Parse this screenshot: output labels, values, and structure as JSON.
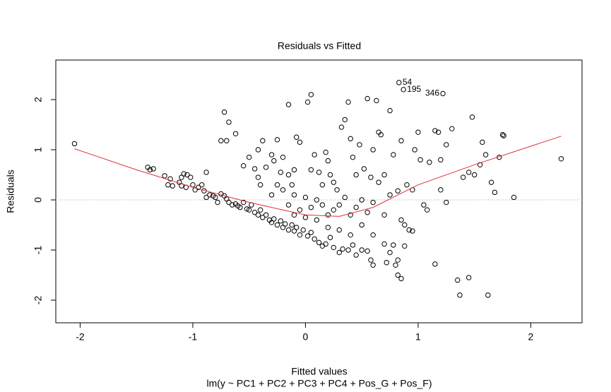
{
  "chart_data": {
    "type": "scatter",
    "title": "Residuals vs Fitted",
    "x_label": "Fitted values",
    "subtitle": "lm(y ~ PC1 + PC2 + PC3 + PC4 + Pos_G + Pos_F)",
    "y_label": "Residuals",
    "xlim": [
      -2.216,
      2.455
    ],
    "ylim": [
      -2.451,
      2.789
    ],
    "xticks": [
      -2,
      -1,
      0,
      1,
      2
    ],
    "yticks": [
      -2,
      -1,
      0,
      1,
      2
    ],
    "reference_line": 0,
    "point_color": "#000000",
    "points": {
      "x": [
        -2.05,
        -1.4,
        -1.38,
        -1.35,
        -1.25,
        -1.2,
        -1.22,
        -1.18,
        -1.12,
        -1.1,
        -1.08,
        -1.05,
        -1.02,
        -1.1,
        -1.06,
        -1.0,
        -0.98,
        -0.95,
        -0.92,
        -0.9,
        -0.88,
        -0.88,
        -0.85,
        -0.82,
        -0.8,
        -0.78,
        -0.75,
        -0.72,
        -0.7,
        -0.68,
        -0.65,
        -0.62,
        -0.6,
        -0.58,
        -0.55,
        -0.52,
        -0.5,
        -0.48,
        -0.45,
        -0.42,
        -0.4,
        -0.38,
        -0.35,
        -0.32,
        -0.3,
        -0.28,
        -0.25,
        -0.22,
        -0.2,
        -0.18,
        -0.15,
        -0.12,
        -0.1,
        -0.08,
        -0.05,
        -0.02,
        0.02,
        0.05,
        0.08,
        0.12,
        0.15,
        0.18,
        0.22,
        0.25,
        0.3,
        0.33,
        0.38,
        0.42,
        0.45,
        0.5,
        0.55,
        0.58,
        0.6,
        0.7,
        0.72,
        0.75,
        0.8,
        0.82,
        0.85,
        0.82,
        0.78,
        0.88,
        0.92,
        0.95,
        1.15,
        1.35,
        1.37,
        1.45,
        1.62,
        -0.72,
        -0.68,
        -0.75,
        -0.7,
        -0.62,
        -0.55,
        -0.5,
        -0.45,
        -0.42,
        -0.4,
        -0.42,
        -0.38,
        -0.35,
        -0.3,
        -0.28,
        -0.25,
        -0.22,
        -0.2,
        -0.15,
        -0.1,
        -0.08,
        -0.05,
        -0.15,
        -0.12,
        0.02,
        0.05,
        0.05,
        0.08,
        0.12,
        0.15,
        0.18,
        0.2,
        0.22,
        0.25,
        0.28,
        0.32,
        0.35,
        0.38,
        0.4,
        0.42,
        0.45,
        0.48,
        0.52,
        0.55,
        0.58,
        0.6,
        0.63,
        0.65,
        0.67,
        0.7,
        0.75,
        0.78,
        0.82,
        0.85,
        0.9,
        0.95,
        0.97,
        1.0,
        1.02,
        1.05,
        1.08,
        1.1,
        1.15,
        1.18,
        1.2,
        1.25,
        1.3,
        1.4,
        1.45,
        1.48,
        1.5,
        1.55,
        1.57,
        1.6,
        1.65,
        1.68,
        1.75,
        1.76,
        1.72,
        1.85,
        2.27,
        1.2,
        1.25,
        -0.3,
        -0.25,
        -0.2,
        -0.15,
        -0.1,
        -0.05,
        0.0,
        0.05,
        0.1,
        0.15,
        0.2,
        0.25,
        0.3,
        0.35,
        0.4,
        0.45,
        0.5,
        0.55,
        0.6,
        0.65,
        0.7,
        0.75,
        0.85,
        0.88,
        0.1,
        0.0,
        -0.1,
        0.2,
        0.3,
        0.4,
        0.5,
        0.6,
        0.83,
        0.87,
        1.22
      ],
      "y": [
        1.12,
        0.65,
        0.6,
        0.62,
        0.48,
        0.42,
        0.3,
        0.28,
        0.35,
        0.45,
        0.52,
        0.5,
        0.45,
        0.28,
        0.25,
        0.3,
        0.2,
        0.25,
        0.3,
        0.18,
        0.55,
        0.05,
        0.1,
        0.08,
        0.05,
        -0.05,
        0.12,
        0.08,
        0.02,
        -0.05,
        -0.1,
        -0.08,
        -0.12,
        -0.15,
        -0.05,
        -0.18,
        -0.2,
        -0.1,
        -0.25,
        -0.3,
        -0.2,
        -0.35,
        -0.3,
        -0.4,
        -0.45,
        -0.38,
        -0.5,
        -0.42,
        -0.55,
        -0.48,
        -0.6,
        -0.5,
        -0.62,
        -0.55,
        -0.7,
        -0.6,
        -0.72,
        -0.65,
        -0.78,
        -0.85,
        -0.92,
        -0.88,
        -0.75,
        -0.95,
        -1.05,
        -0.98,
        -1.0,
        -0.9,
        -1.1,
        -1.0,
        -1.02,
        -1.2,
        -1.3,
        -0.88,
        -1.25,
        -1.05,
        -1.3,
        -1.5,
        -1.57,
        -1.2,
        -0.9,
        -0.92,
        -0.6,
        -0.62,
        -1.28,
        -1.6,
        -1.9,
        -1.55,
        -1.9,
        1.75,
        1.55,
        1.18,
        1.18,
        1.32,
        0.68,
        0.85,
        0.62,
        0.45,
        0.3,
        1.0,
        1.18,
        0.65,
        0.9,
        0.78,
        1.2,
        0.55,
        0.85,
        0.5,
        0.6,
        1.25,
        1.15,
        1.9,
        0.3,
        1.95,
        2.1,
        0.6,
        0.9,
        0.55,
        0.3,
        0.95,
        0.78,
        0.5,
        0.35,
        0.2,
        1.45,
        1.6,
        1.95,
        1.22,
        0.85,
        0.5,
        1.1,
        0.62,
        2.02,
        0.45,
        1.0,
        1.98,
        1.35,
        1.3,
        0.5,
        1.78,
        0.9,
        0.18,
        1.18,
        0.3,
        0.2,
        1.0,
        1.35,
        0.8,
        -0.1,
        -0.2,
        0.75,
        1.38,
        1.35,
        0.8,
        1.1,
        1.42,
        0.45,
        0.55,
        1.65,
        0.5,
        0.7,
        1.15,
        0.9,
        0.35,
        0.15,
        1.3,
        1.28,
        0.85,
        0.05,
        0.82,
        0.2,
        -0.05,
        0.1,
        0.3,
        0.2,
        -0.1,
        0.1,
        -0.2,
        0.05,
        -0.15,
        0.0,
        -0.1,
        -0.3,
        -0.2,
        -0.1,
        0.05,
        -0.3,
        -0.15,
        0.0,
        -0.25,
        -0.05,
        0.35,
        -0.3,
        0.1,
        -0.4,
        -0.5,
        -0.4,
        -0.35,
        -0.3,
        -0.55,
        -0.6,
        -0.7,
        -0.5,
        -0.7,
        2.34,
        2.2,
        2.12
      ]
    },
    "smooth": {
      "color": "#e0303a",
      "x": [
        -2.05,
        -1.5,
        -1.0,
        -0.5,
        -0.2,
        0.0,
        0.3,
        0.6,
        1.0,
        1.5,
        2.27
      ],
      "y": [
        1.02,
        0.6,
        0.25,
        -0.05,
        -0.2,
        -0.3,
        -0.33,
        -0.15,
        0.3,
        0.7,
        1.27
      ]
    },
    "annotations": [
      {
        "text": "54",
        "x": 0.83,
        "y": 2.34,
        "side": "right"
      },
      {
        "text": "195",
        "x": 0.87,
        "y": 2.2,
        "side": "right"
      },
      {
        "text": "346",
        "x": 1.22,
        "y": 2.12,
        "side": "left"
      }
    ]
  }
}
